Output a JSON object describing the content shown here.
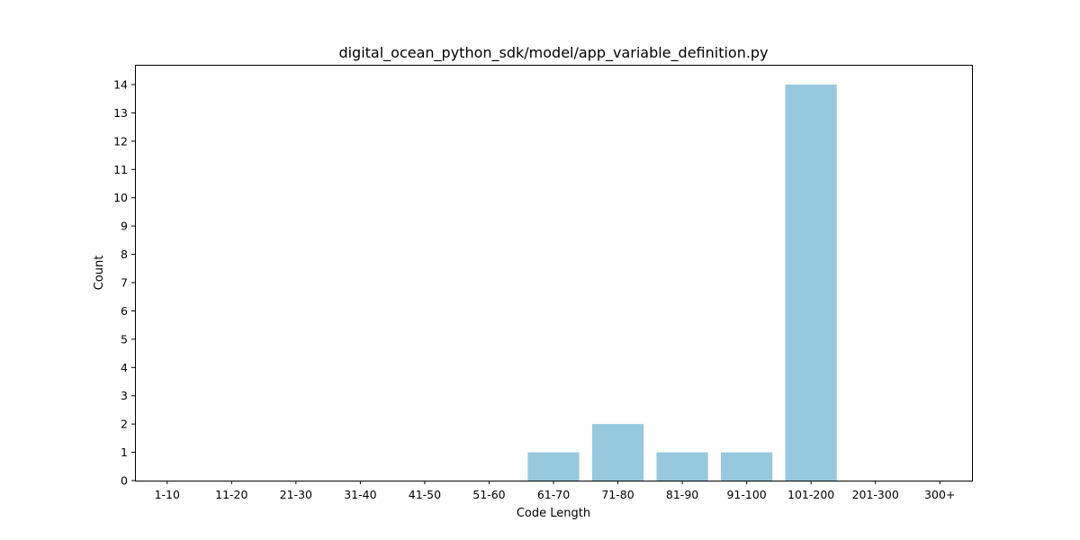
{
  "chart_data": {
    "type": "bar",
    "title": "digital_ocean_python_sdk/model/app_variable_definition.py",
    "xlabel": "Code Length",
    "ylabel": "Count",
    "categories": [
      "1-10",
      "11-20",
      "21-30",
      "31-40",
      "41-50",
      "51-60",
      "61-70",
      "71-80",
      "81-90",
      "91-100",
      "101-200",
      "201-300",
      "300+"
    ],
    "values": [
      0,
      0,
      0,
      0,
      0,
      0,
      1,
      2,
      1,
      1,
      14,
      0,
      0
    ],
    "y_ticks": [
      0,
      1,
      2,
      3,
      4,
      5,
      6,
      7,
      8,
      9,
      10,
      11,
      12,
      13,
      14
    ],
    "ylim": [
      0,
      14.7
    ],
    "grid": false,
    "legend": "none",
    "bar_color": "#96c9dd"
  }
}
